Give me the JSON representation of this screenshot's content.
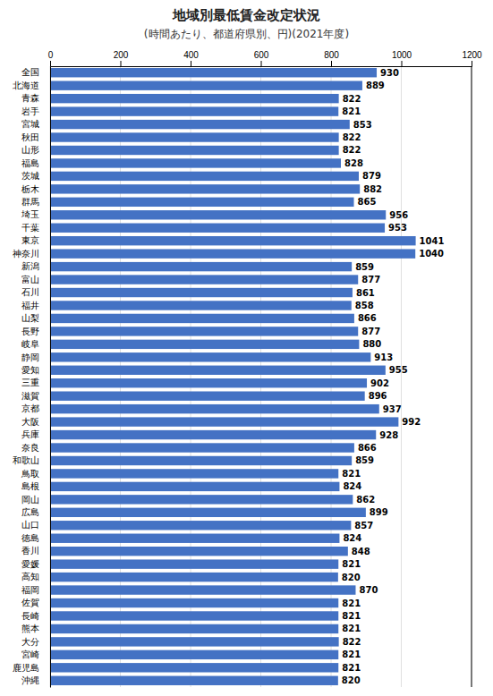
{
  "chart_data": {
    "type": "bar",
    "orientation": "horizontal",
    "title": "地域別最低賃金改定状況",
    "subtitle": "(時間あたり、都道府県別、円)(2021年度)",
    "categories": [
      "全国",
      "北海道",
      "青森",
      "岩手",
      "宮城",
      "秋田",
      "山形",
      "福島",
      "茨城",
      "栃木",
      "群馬",
      "埼玉",
      "千葉",
      "東京",
      "神奈川",
      "新潟",
      "富山",
      "石川",
      "福井",
      "山梨",
      "長野",
      "岐阜",
      "静岡",
      "愛知",
      "三重",
      "滋賀",
      "京都",
      "大阪",
      "兵庫",
      "奈良",
      "和歌山",
      "鳥取",
      "島根",
      "岡山",
      "広島",
      "山口",
      "徳島",
      "香川",
      "愛媛",
      "高知",
      "福岡",
      "佐賀",
      "長崎",
      "熊本",
      "大分",
      "宮崎",
      "鹿児島",
      "沖縄"
    ],
    "values": [
      930,
      889,
      822,
      821,
      853,
      822,
      822,
      828,
      879,
      882,
      865,
      956,
      953,
      1041,
      1040,
      859,
      877,
      861,
      858,
      866,
      877,
      880,
      913,
      955,
      902,
      896,
      937,
      992,
      928,
      866,
      859,
      821,
      824,
      862,
      899,
      857,
      824,
      848,
      821,
      820,
      870,
      821,
      821,
      821,
      822,
      821,
      821,
      820
    ],
    "color": "#4472C4",
    "xlim": [
      0,
      1200
    ],
    "xticks": [
      0,
      200,
      400,
      600,
      800,
      1000,
      1200
    ],
    "grid": true,
    "data_labels": true
  }
}
